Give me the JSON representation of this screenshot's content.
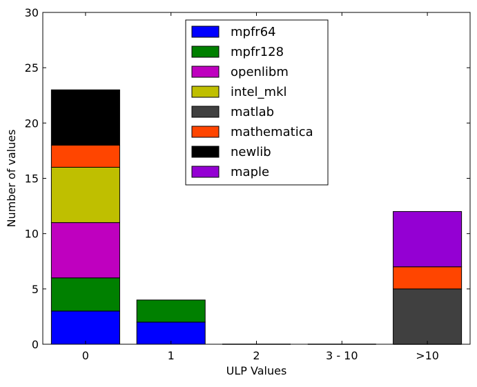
{
  "chart_data": {
    "type": "bar",
    "stacked": true,
    "title": "",
    "xlabel": "ULP Values",
    "ylabel": "Number of values",
    "categories": [
      "0",
      "1",
      "2",
      "3 - 10",
      ">10"
    ],
    "ylim": [
      0,
      30
    ],
    "yticks": [
      0,
      5,
      10,
      15,
      20,
      25,
      30
    ],
    "grid": false,
    "legend_position": "top-center",
    "series": [
      {
        "name": "mpfr64",
        "color": "#0000ff",
        "values": [
          3,
          2,
          0,
          0,
          0
        ]
      },
      {
        "name": "mpfr128",
        "color": "#008000",
        "values": [
          3,
          2,
          0,
          0,
          0
        ]
      },
      {
        "name": "openlibm",
        "color": "#bf00bf",
        "values": [
          5,
          0,
          0,
          0,
          0
        ]
      },
      {
        "name": "intel_mkl",
        "color": "#bfbf00",
        "values": [
          5,
          0,
          0,
          0,
          0
        ]
      },
      {
        "name": "matlab",
        "color": "#404040",
        "values": [
          0,
          0,
          0,
          0,
          5
        ]
      },
      {
        "name": "mathematica",
        "color": "#ff4500",
        "values": [
          2,
          0,
          0,
          0,
          2
        ]
      },
      {
        "name": "newlib",
        "color": "#000000",
        "values": [
          5,
          0,
          0,
          0,
          0
        ]
      },
      {
        "name": "maple",
        "color": "#9400d3",
        "values": [
          0,
          0,
          0,
          0,
          5
        ]
      }
    ]
  }
}
